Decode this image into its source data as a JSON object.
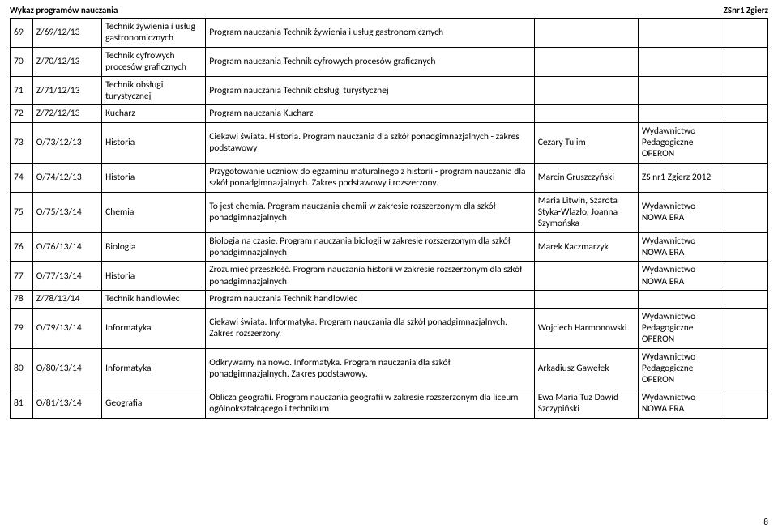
{
  "header": {
    "left": "Wykaz programów nauczania",
    "right": "ZSnr1 Zgierz"
  },
  "pageNumber": "8",
  "rows": {
    "r69": {
      "num": "69",
      "code": "Z/69/12/13",
      "subj": "Technik żywienia i usług gastronomicznych",
      "desc": "Program nauczania Technik żywienia i usług gastronomicznych",
      "auth": "",
      "pub": "",
      "ext": ""
    },
    "r70": {
      "num": "70",
      "code": "Z/70/12/13",
      "subj": "Technik cyfrowych procesów graficznych",
      "desc": "Program nauczania Technik cyfrowych procesów graficznych",
      "auth": "",
      "pub": "",
      "ext": ""
    },
    "r71": {
      "num": "71",
      "code": "Z/71/12/13",
      "subj": "Technik obsługi turystycznej",
      "desc": "Program nauczania Technik obsługi turystycznej",
      "auth": "",
      "pub": "",
      "ext": ""
    },
    "r72": {
      "num": "72",
      "code": "Z/72/12/13",
      "subj": "Kucharz",
      "desc": "Program nauczania Kucharz",
      "auth": "",
      "pub": "",
      "ext": ""
    },
    "r73": {
      "num": "73",
      "code": "O/73/12/13",
      "subj": "Historia",
      "desc": "Ciekawi świata. Historia. Program nauczania dla szkół ponadgimnazjalnych - zakres podstawowy",
      "auth": "Cezary Tulim",
      "pub": "Wydawnictwo Pedagogiczne OPERON",
      "ext": ""
    },
    "r74": {
      "num": "74",
      "code": "O/74/12/13",
      "subj": "Historia",
      "desc": "Przygotowanie uczniów do egzaminu maturalnego z historii - program nauczania dla szkół ponadgimnazjalnych. Zakres podstawowy i rozszerzony.",
      "auth": "Marcin Gruszczyński",
      "pub": "ZS nr1 Zgierz 2012",
      "ext": ""
    },
    "r75": {
      "num": "75",
      "code": "O/75/13/14",
      "subj": "Chemia",
      "desc": "To jest chemia. Program nauczania chemii w zakresie rozszerzonym dla szkół ponadgimnazjalnych",
      "auth": "Maria Litwin, Szarota Styka-Wlazło, Joanna Szymońska",
      "pub": "Wydawnictwo NOWA ERA",
      "ext": ""
    },
    "r76": {
      "num": "76",
      "code": "O/76/13/14",
      "subj": "Biologia",
      "desc": "Biologia na czasie. Program nauczania biologii w zakresie rozszerzonym dla szkół ponadgimnazjalnych",
      "auth": "Marek Kaczmarzyk",
      "pub": "Wydawnictwo NOWA ERA",
      "ext": ""
    },
    "r77": {
      "num": "77",
      "code": "O/77/13/14",
      "subj": "Historia",
      "desc": "Zrozumieć przeszłość. Program nauczania historii w zakresie rozszerzonym dla szkół ponadgimnazjalnych",
      "auth": "",
      "pub": "Wydawnictwo NOWA ERA",
      "ext": ""
    },
    "r78": {
      "num": "78",
      "code": "Z/78/13/14",
      "subj": "Technik handlowiec",
      "desc": "Program nauczania Technik handlowiec",
      "auth": "",
      "pub": "",
      "ext": ""
    },
    "r79": {
      "num": "79",
      "code": "O/79/13/14",
      "subj": "Informatyka",
      "desc": "Ciekawi świata. Informatyka. Program nauczania dla szkół ponadgimnazjalnych. Zakres rozszerzony.",
      "auth": "Wojciech Harmonowski",
      "pub": "Wydawnictwo Pedagogiczne OPERON",
      "ext": ""
    },
    "r80": {
      "num": "80",
      "code": "O/80/13/14",
      "subj": "Informatyka",
      "desc": "Odkrywamy na nowo. Informatyka. Program nauczania dla szkół ponadgimnazjalnych. Zakres podstawowy.",
      "auth": "Arkadiusz Gawełek",
      "pub": "Wydawnictwo Pedagogiczne OPERON",
      "ext": ""
    },
    "r81": {
      "num": "81",
      "code": "O/81/13/14",
      "subj": "Geografia",
      "desc": "Oblicza geografii. Program nauczania geografii w zakresie rozszerzonym dla liceum ogólnokształcącego i technikum",
      "auth": "Ewa Maria Tuz Dawid Szczypiński",
      "pub": "Wydawnictwo NOWA ERA",
      "ext": ""
    }
  }
}
